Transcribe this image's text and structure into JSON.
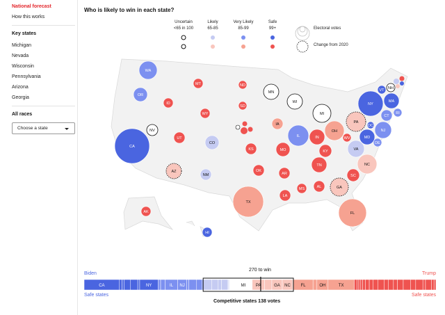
{
  "sidebar": {
    "national": "National forecast",
    "how": "How this works",
    "key_heading": "Key states",
    "key_states": [
      "Michigan",
      "Nevada",
      "Wisconsin",
      "Pennsylvania",
      "Arizona",
      "Georgia"
    ],
    "all_heading": "All races",
    "select_value": "Choose a state"
  },
  "title": "Who is likely to win in each state?",
  "legend": {
    "cols": [
      {
        "label": "Uncertain",
        "range": "<65 in 100"
      },
      {
        "label": "Likely",
        "range": "65-85"
      },
      {
        "label": "Very Likely",
        "range": "85-99"
      },
      {
        "label": "Safe",
        "range": "99+"
      }
    ],
    "electoral": "Electoral votes",
    "change": "Change from 2020"
  },
  "colors": {
    "uncertain": "#ffffff",
    "lb": "#c5cbf2",
    "vb": "#7c90f0",
    "sb": "#4a65e0",
    "lr": "#f9c6bd",
    "vr": "#f6a291",
    "sr": "#ef5350"
  },
  "states": [
    {
      "s": "WA",
      "c": "vb"
    },
    {
      "s": "OR",
      "c": "vb"
    },
    {
      "s": "CA",
      "c": "sb"
    },
    {
      "s": "NV",
      "c": "uncertain"
    },
    {
      "s": "ID",
      "c": "sr"
    },
    {
      "s": "MT",
      "c": "sr"
    },
    {
      "s": "WY",
      "c": "sr"
    },
    {
      "s": "UT",
      "c": "sr"
    },
    {
      "s": "CO",
      "c": "lb"
    },
    {
      "s": "AZ",
      "c": "lr",
      "changed": true
    },
    {
      "s": "NM",
      "c": "lb"
    },
    {
      "s": "ND",
      "c": "sr"
    },
    {
      "s": "SD",
      "c": "sr"
    },
    {
      "s": "KS",
      "c": "sr"
    },
    {
      "s": "OK",
      "c": "sr"
    },
    {
      "s": "TX",
      "c": "vr"
    },
    {
      "s": "MN",
      "c": "uncertain"
    },
    {
      "s": "WI",
      "c": "uncertain"
    },
    {
      "s": "IA",
      "c": "vr"
    },
    {
      "s": "MO",
      "c": "sr"
    },
    {
      "s": "AR",
      "c": "sr"
    },
    {
      "s": "LA",
      "c": "sr"
    },
    {
      "s": "MS",
      "c": "sr"
    },
    {
      "s": "AL",
      "c": "sr"
    },
    {
      "s": "IL",
      "c": "vb"
    },
    {
      "s": "IN",
      "c": "sr"
    },
    {
      "s": "KY",
      "c": "sr"
    },
    {
      "s": "TN",
      "c": "sr"
    },
    {
      "s": "OH",
      "c": "vr"
    },
    {
      "s": "WV",
      "c": "sr"
    },
    {
      "s": "MI",
      "c": "uncertain"
    },
    {
      "s": "PA",
      "c": "lr",
      "changed": true
    },
    {
      "s": "NY",
      "c": "sb"
    },
    {
      "s": "VT",
      "c": "sb"
    },
    {
      "s": "NH",
      "c": "uncertain"
    },
    {
      "s": "MA",
      "c": "sb"
    },
    {
      "s": "CT",
      "c": "vb"
    },
    {
      "s": "RI",
      "c": "vb"
    },
    {
      "s": "NJ",
      "c": "vb"
    },
    {
      "s": "DC",
      "c": "sb"
    },
    {
      "s": "MD",
      "c": "sb"
    },
    {
      "s": "DE",
      "c": "vb"
    },
    {
      "s": "VA",
      "c": "lb"
    },
    {
      "s": "NC",
      "c": "lr"
    },
    {
      "s": "SC",
      "c": "sr"
    },
    {
      "s": "GA",
      "c": "lr",
      "changed": true
    },
    {
      "s": "FL",
      "c": "vr"
    },
    {
      "s": "AK",
      "c": "sr"
    },
    {
      "s": "HI",
      "c": "sb"
    }
  ],
  "bar": {
    "biden": "Biden",
    "trump": "Trump",
    "safe_left": "Safe states",
    "safe_right": "Safe states",
    "to_win": "270 to win",
    "competitive": "Competitive states 138 votes",
    "total": 538,
    "win": 270,
    "comp_start": 182,
    "comp_end": 320,
    "segments": [
      [
        "CA",
        54,
        "sb"
      ],
      [
        "",
        4,
        "sb"
      ],
      [
        "",
        3,
        "sb"
      ],
      [
        "",
        10,
        "sb"
      ],
      [
        "",
        11,
        "sb"
      ],
      [
        "",
        3,
        "sb"
      ],
      [
        "NY",
        28,
        "sb"
      ],
      [
        "",
        4,
        "vb"
      ],
      [
        "",
        7,
        "vb"
      ],
      [
        "IL",
        19,
        "vb"
      ],
      [
        "NJ",
        14,
        "vb"
      ],
      [
        "",
        3,
        "vb"
      ],
      [
        "",
        12,
        "vb"
      ],
      [
        "",
        8,
        "vb"
      ],
      [
        "",
        2,
        "vb"
      ],
      [
        "",
        13,
        "lb"
      ],
      [
        "",
        10,
        "lb"
      ],
      [
        "",
        5,
        "lb"
      ],
      [
        "",
        10,
        "lb"
      ],
      [
        "",
        1,
        "lb"
      ],
      [
        "",
        1,
        "lb"
      ],
      [
        "",
        4,
        "uncertain"
      ],
      [
        "",
        10,
        "uncertain"
      ],
      [
        "MI",
        15,
        "uncertain"
      ],
      [
        "",
        6,
        "uncertain"
      ],
      [
        "PA",
        19,
        "lr"
      ],
      [
        "",
        11,
        "lr"
      ],
      [
        "GA",
        16,
        "lr"
      ],
      [
        "NC",
        16,
        "lr"
      ],
      [
        "",
        1,
        "lr"
      ],
      [
        "FL",
        30,
        "vr"
      ],
      [
        "",
        6,
        "vr"
      ],
      [
        "OH",
        17,
        "vr"
      ],
      [
        "TX",
        40,
        "vr"
      ],
      [
        "",
        4,
        "sr"
      ],
      [
        "",
        3,
        "sr"
      ],
      [
        "",
        3,
        "sr"
      ],
      [
        "",
        3,
        "sr"
      ],
      [
        "",
        4,
        "sr"
      ],
      [
        "",
        6,
        "sr"
      ],
      [
        "",
        6,
        "sr"
      ],
      [
        "",
        7,
        "sr"
      ],
      [
        "",
        10,
        "sr"
      ],
      [
        "",
        6,
        "sr"
      ],
      [
        "",
        8,
        "sr"
      ],
      [
        "",
        6,
        "sr"
      ],
      [
        "",
        9,
        "sr"
      ],
      [
        "",
        11,
        "sr"
      ],
      [
        "",
        8,
        "sr"
      ],
      [
        "",
        11,
        "sr"
      ],
      [
        "",
        4,
        "sr"
      ],
      [
        "",
        9,
        "sr"
      ],
      [
        "",
        4,
        "sr"
      ],
      [
        "",
        3,
        "sr"
      ]
    ]
  }
}
